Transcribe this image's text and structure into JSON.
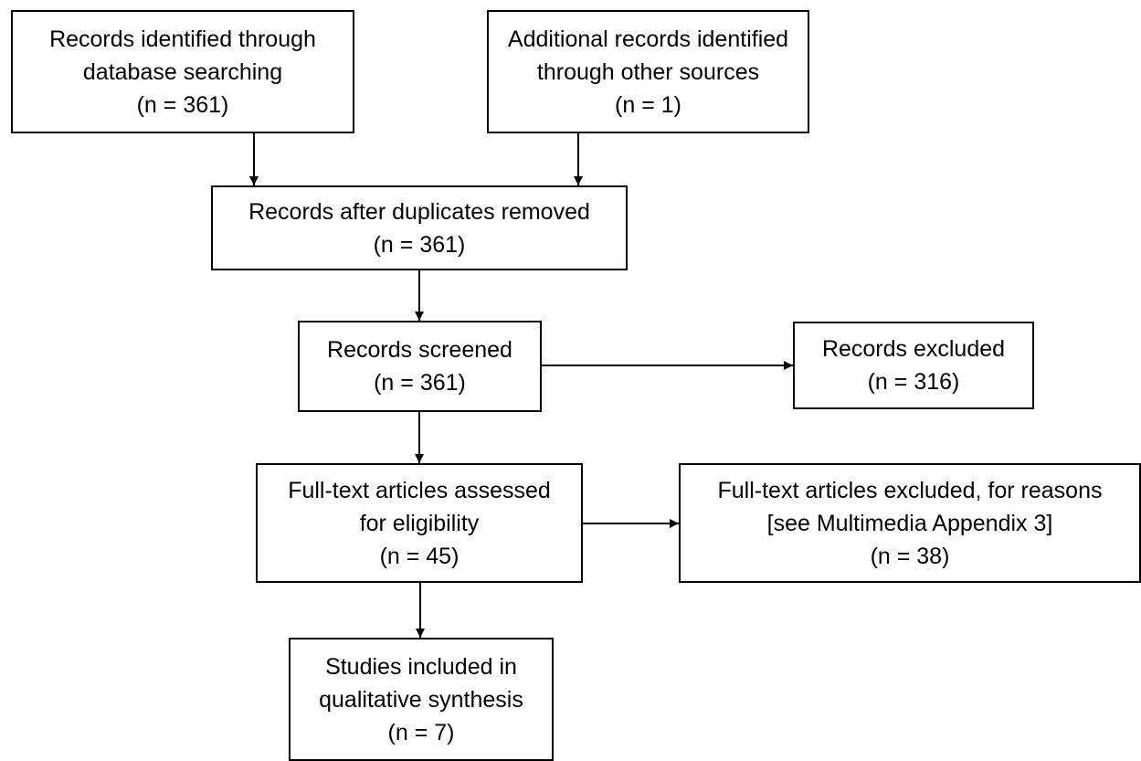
{
  "diagram": {
    "records_identified": {
      "line1": "Records identified through",
      "line2": "database searching",
      "line3": "(n = 361)"
    },
    "additional_records": {
      "line1": "Additional records identified",
      "line2": "through other sources",
      "line3": "(n = 1)"
    },
    "after_duplicates": {
      "line1": "Records after duplicates removed",
      "line2": "(n = 361)"
    },
    "screened": {
      "line1": "Records screened",
      "line2": "(n = 361)"
    },
    "excluded": {
      "line1": "Records excluded",
      "line2": "(n = 316)"
    },
    "full_text_assessed": {
      "line1": "Full-text articles assessed",
      "line2": "for eligibility",
      "line3": "(n = 45)"
    },
    "full_text_excluded": {
      "line1": "Full-text articles excluded, for reasons",
      "line2": "[see Multimedia Appendix 3]",
      "line3": "(n = 38)"
    },
    "included": {
      "line1": "Studies included in",
      "line2": "qualitative synthesis",
      "line3": "(n = 7)"
    }
  }
}
